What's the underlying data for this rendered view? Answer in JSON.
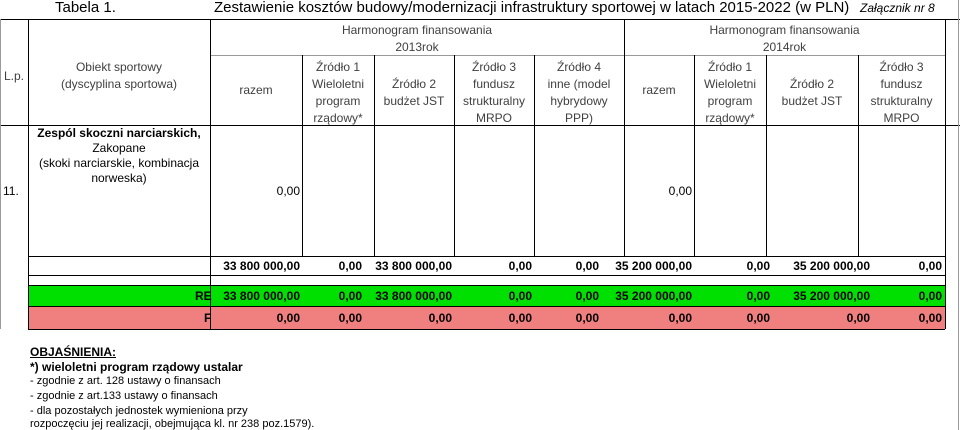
{
  "title": {
    "tabela": "Tabela 1.",
    "main": "Zestawienie kosztów budowy/modernizacji infrastruktury sportowej w latach 2015-2022 (w PLN)",
    "zalacznik": "Załącznik nr 8"
  },
  "groups": [
    {
      "line1": "Harmonogram finansowania",
      "line2": "2013rok"
    },
    {
      "line1": "Harmonogram finansowania",
      "line2": "2014rok"
    }
  ],
  "columns": {
    "lp": "L.p.",
    "obiekt": [
      "Obiekt sportowy",
      "(dyscyplina sportowa)"
    ],
    "razem": "razem",
    "zrodlo1": [
      "Źródło 1",
      "Wieloletni",
      "program",
      "rządowy*"
    ],
    "zrodlo2": [
      "Źródło 2",
      "budżet JST"
    ],
    "zrodlo3": [
      "Źródło 3",
      "fundusz",
      "strukturalny",
      "MRPO"
    ],
    "zrodlo4": [
      "Źródło 4",
      "inne (model",
      "hybrydowy",
      "PPP)"
    ]
  },
  "row11": {
    "lp": "11.",
    "obiekt": [
      "Zespól skoczni narciarskich,",
      "Zakopane",
      "(skoki narciarskie, kombinacja",
      "norweska)"
    ],
    "razem_2013": "0,00",
    "razem_2014": "0,00"
  },
  "sum_rows": [
    {
      "label": "",
      "values": [
        "33 800 000,00",
        "0,00",
        "33 800 000,00",
        "0,00",
        "0,00",
        "35 200 000,00",
        "0,00",
        "35 200 000,00",
        "0,00"
      ],
      "color": "#ffffff"
    },
    {
      "label": "RE",
      "values": [
        "33 800 000,00",
        "0,00",
        "33 800 000,00",
        "0,00",
        "0,00",
        "35 200 000,00",
        "0,00",
        "35 200 000,00",
        "0,00"
      ],
      "color": "#00e000"
    },
    {
      "label": "F",
      "values": [
        "0,00",
        "0,00",
        "0,00",
        "0,00",
        "0,00",
        "0,00",
        "0,00",
        "0,00",
        "0,00"
      ],
      "color": "#f08080"
    }
  ],
  "notes": {
    "heading": "OBJAŚNIENIA:",
    "line1": "*) wieloletni program rządowy ustalar",
    "line2": " - zgodnie z art. 128 ustawy o finansach",
    "line3": " - zgodnie z art.133 ustawy o finansach",
    "line4": " - dla pozostałych jednostek wymienio",
    "line4b": "na przy",
    "line5": "rozpoczęciu jej realizacji, obejmująca kl",
    "line5b": ". nr 238 poz.1579)."
  }
}
